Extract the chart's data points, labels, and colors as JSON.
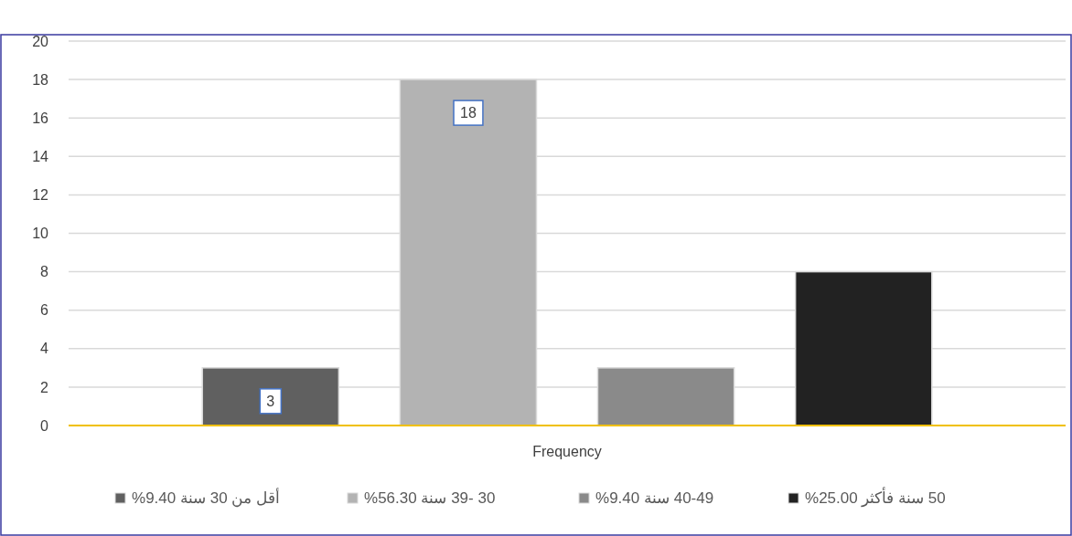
{
  "chart_data": {
    "type": "bar",
    "xlabel": "Frequency",
    "categories": [
      null
    ],
    "series": [
      {
        "name": "أقل من 30 سنة 9.40%",
        "color": "#606060",
        "values": [
          3
        ],
        "value_labels": [
          "3"
        ]
      },
      {
        "name": "30 -39 سنة 56.30%",
        "color": "#b3b3b3",
        "values": [
          18
        ],
        "value_labels": [
          "18"
        ]
      },
      {
        "name": "40-49 سنة 9.40%",
        "color": "#8a8a8a",
        "values": [
          3
        ],
        "value_labels": [
          null
        ]
      },
      {
        "name": "50 سنة فأكثر 25.00%",
        "color": "#222222",
        "values": [
          8
        ],
        "value_labels": [
          null
        ]
      }
    ],
    "ylim": [
      0,
      20
    ],
    "yticks": [
      0,
      2,
      4,
      6,
      8,
      10,
      12,
      14,
      16,
      18,
      20
    ],
    "grid": "y",
    "legend": "bottom"
  }
}
